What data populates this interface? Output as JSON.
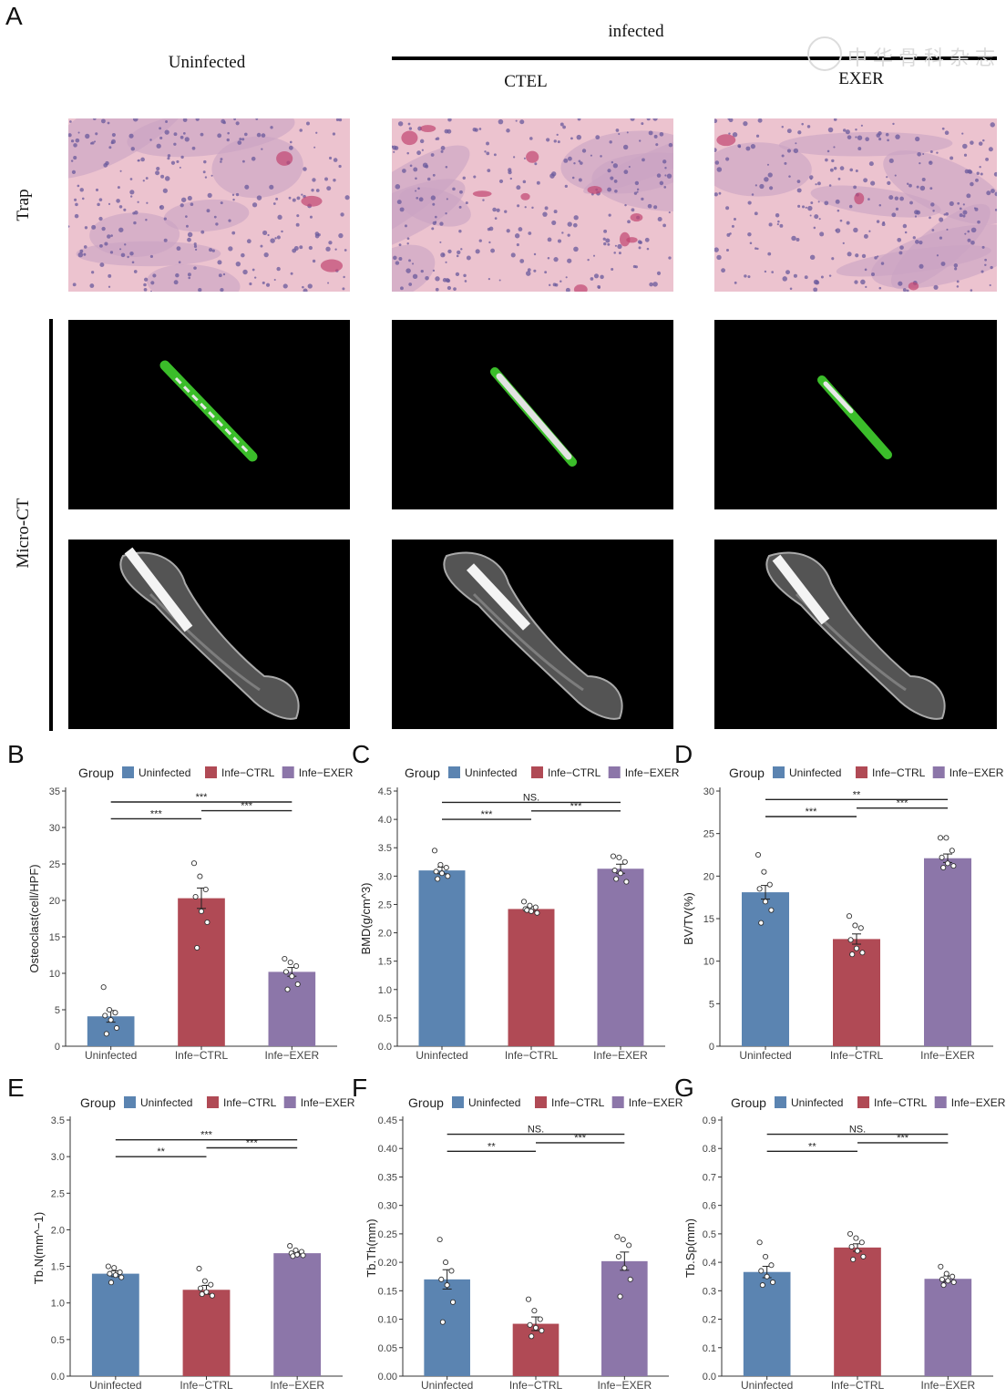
{
  "figure": {
    "panel_a_label": "A",
    "infected_label": "infected",
    "uninfected_label": "Uninfected",
    "ctel_label": "CTEL",
    "exer_label": "EXER",
    "row_trap": "Trap",
    "row_microct": "Micro-CT",
    "watermark": "中华骨科杂志",
    "colors": {
      "Uninfected": "#5b84b1",
      "Infe-CTRL": "#b04a55",
      "Infe-EXER": "#8c76a9"
    }
  },
  "chart_data": [
    {
      "panel": "B",
      "type": "bar",
      "legend_title": "Group",
      "legend": [
        "Uninfected",
        "Infe−CTRL",
        "Infe−EXER"
      ],
      "categories": [
        "Uninfected",
        "Infe−CTRL",
        "Infe−EXER"
      ],
      "values": [
        4.1,
        20.3,
        10.2
      ],
      "errors": [
        0.8,
        1.4,
        0.6
      ],
      "points": [
        [
          8.1,
          5.0,
          4.6,
          4.2,
          3.6,
          2.5,
          1.7
        ],
        [
          25.1,
          23.3,
          21.5,
          20.5,
          18.5,
          17.0,
          13.5
        ],
        [
          12.0,
          11.5,
          11.0,
          10.2,
          9.6,
          8.5,
          7.8
        ]
      ],
      "ylabel": "Osteoclast(cell/HPF)",
      "ylim": [
        0,
        35
      ],
      "yticks": [
        "0",
        "5",
        "10",
        "15",
        "20",
        "25",
        "30",
        "35"
      ],
      "brackets": [
        {
          "from": 0,
          "to": 2,
          "label": "***",
          "y": 33.5
        },
        {
          "from": 1,
          "to": 2,
          "label": "***",
          "y": 32.3
        },
        {
          "from": 0,
          "to": 1,
          "label": "***",
          "y": 31.2
        }
      ],
      "legend_placement": "top"
    },
    {
      "panel": "C",
      "type": "bar",
      "legend_title": "Group",
      "legend": [
        "Uninfected",
        "Infe−CTRL",
        "Infe−EXER"
      ],
      "categories": [
        "Uninfected",
        "Infe−CTRL",
        "Infe−EXER"
      ],
      "values": [
        3.1,
        2.42,
        3.13
      ],
      "errors": [
        0.06,
        0.04,
        0.08
      ],
      "points": [
        [
          3.45,
          3.2,
          3.15,
          3.08,
          3.05,
          3.0,
          2.95
        ],
        [
          2.55,
          2.48,
          2.45,
          2.42,
          2.38,
          2.35,
          2.4
        ],
        [
          3.35,
          3.33,
          3.25,
          3.1,
          3.05,
          2.9,
          2.95
        ]
      ],
      "ylabel": "BMD(g/cm^3)",
      "ylim": [
        0,
        4.5
      ],
      "yticks": [
        "0.0",
        "0.5",
        "1.0",
        "1.5",
        "2.0",
        "2.5",
        "3.0",
        "3.5",
        "4.0",
        "4.5"
      ],
      "brackets": [
        {
          "from": 0,
          "to": 2,
          "label": "NS.",
          "y": 4.3
        },
        {
          "from": 1,
          "to": 2,
          "label": "***",
          "y": 4.15
        },
        {
          "from": 0,
          "to": 1,
          "label": "***",
          "y": 4.0
        }
      ],
      "legend_placement": "top"
    },
    {
      "panel": "D",
      "type": "bar",
      "legend_title": "Group",
      "legend": [
        "Uninfected",
        "Infe−CTRL",
        "Infe−EXER"
      ],
      "categories": [
        "Uninfected",
        "Infe−CTRL",
        "Infe−EXER"
      ],
      "values": [
        18.1,
        12.6,
        22.1
      ],
      "errors": [
        0.8,
        0.6,
        0.5
      ],
      "points": [
        [
          22.5,
          20.5,
          19.0,
          18.5,
          17.0,
          16.0,
          14.5
        ],
        [
          15.3,
          14.2,
          13.9,
          12.5,
          11.5,
          11.0,
          10.8
        ],
        [
          24.5,
          24.5,
          23.0,
          22.2,
          21.5,
          21.2,
          21.0
        ]
      ],
      "ylabel": "BV/TV(%)",
      "ylim": [
        0,
        30
      ],
      "yticks": [
        "0",
        "5",
        "10",
        "15",
        "20",
        "25",
        "30"
      ],
      "brackets": [
        {
          "from": 0,
          "to": 2,
          "label": "**",
          "y": 29.0
        },
        {
          "from": 1,
          "to": 2,
          "label": "***",
          "y": 28.0
        },
        {
          "from": 0,
          "to": 1,
          "label": "***",
          "y": 27.0
        }
      ],
      "legend_placement": "top"
    },
    {
      "panel": "E",
      "type": "bar",
      "legend_title": "Group",
      "legend": [
        "Uninfected",
        "Infe−CTRL",
        "Infe−EXER"
      ],
      "categories": [
        "Uninfected",
        "Infe−CTRL",
        "Infe−EXER"
      ],
      "values": [
        1.4,
        1.18,
        1.68
      ],
      "errors": [
        0.04,
        0.06,
        0.02
      ],
      "points": [
        [
          1.5,
          1.48,
          1.42,
          1.4,
          1.38,
          1.35,
          1.28
        ],
        [
          1.47,
          1.3,
          1.25,
          1.2,
          1.15,
          1.1,
          1.12
        ],
        [
          1.78,
          1.72,
          1.7,
          1.68,
          1.66,
          1.65,
          1.64
        ]
      ],
      "ylabel": "Tb.N(mm^−1)",
      "ylim": [
        0,
        3.5
      ],
      "yticks": [
        "0.0",
        "0.5",
        "1.0",
        "1.5",
        "2.0",
        "2.5",
        "3.0",
        "3.5"
      ],
      "brackets": [
        {
          "from": 0,
          "to": 2,
          "label": "***",
          "y": 3.23
        },
        {
          "from": 1,
          "to": 2,
          "label": "***",
          "y": 3.12
        },
        {
          "from": 0,
          "to": 1,
          "label": "**",
          "y": 3.0
        }
      ],
      "legend_placement": "top"
    },
    {
      "panel": "F",
      "type": "bar",
      "legend_title": "Group",
      "legend": [
        "Uninfected",
        "Infe−CTRL",
        "Infe−EXER"
      ],
      "categories": [
        "Uninfected",
        "Infe−CTRL",
        "Infe−EXER"
      ],
      "values": [
        0.17,
        0.092,
        0.202
      ],
      "errors": [
        0.017,
        0.012,
        0.016
      ],
      "points": [
        [
          0.24,
          0.2,
          0.185,
          0.17,
          0.16,
          0.13,
          0.095
        ],
        [
          0.135,
          0.115,
          0.1,
          0.09,
          0.085,
          0.08,
          0.07
        ],
        [
          0.245,
          0.24,
          0.23,
          0.21,
          0.19,
          0.17,
          0.14
        ]
      ],
      "ylabel": "Tb.Th(mm)",
      "ylim": [
        0,
        0.45
      ],
      "yticks": [
        "0.00",
        "0.05",
        "0.10",
        "0.15",
        "0.20",
        "0.25",
        "0.30",
        "0.35",
        "0.40",
        "0.45"
      ],
      "brackets": [
        {
          "from": 0,
          "to": 2,
          "label": "NS.",
          "y": 0.425
        },
        {
          "from": 1,
          "to": 2,
          "label": "***",
          "y": 0.41
        },
        {
          "from": 0,
          "to": 1,
          "label": "**",
          "y": 0.395
        }
      ],
      "legend_placement": "top"
    },
    {
      "panel": "G",
      "type": "bar",
      "legend_title": "Group",
      "legend": [
        "Uninfected",
        "Infe−CTRL",
        "Infe−EXER"
      ],
      "categories": [
        "Uninfected",
        "Infe−CTRL",
        "Infe−EXER"
      ],
      "values": [
        0.366,
        0.452,
        0.342
      ],
      "errors": [
        0.02,
        0.013,
        0.01
      ],
      "points": [
        [
          0.47,
          0.42,
          0.39,
          0.37,
          0.35,
          0.33,
          0.32
        ],
        [
          0.5,
          0.485,
          0.47,
          0.455,
          0.44,
          0.42,
          0.41
        ],
        [
          0.385,
          0.36,
          0.35,
          0.34,
          0.335,
          0.33,
          0.32
        ]
      ],
      "ylabel": "Tb.Sp(mm)",
      "ylim": [
        0,
        0.9
      ],
      "yticks": [
        "0.0",
        "0.1",
        "0.2",
        "0.3",
        "0.4",
        "0.5",
        "0.6",
        "0.7",
        "0.8",
        "0.9"
      ],
      "brackets": [
        {
          "from": 0,
          "to": 2,
          "label": "NS.",
          "y": 0.85
        },
        {
          "from": 1,
          "to": 2,
          "label": "***",
          "y": 0.82
        },
        {
          "from": 0,
          "to": 1,
          "label": "**",
          "y": 0.79
        }
      ],
      "legend_placement": "top"
    }
  ]
}
